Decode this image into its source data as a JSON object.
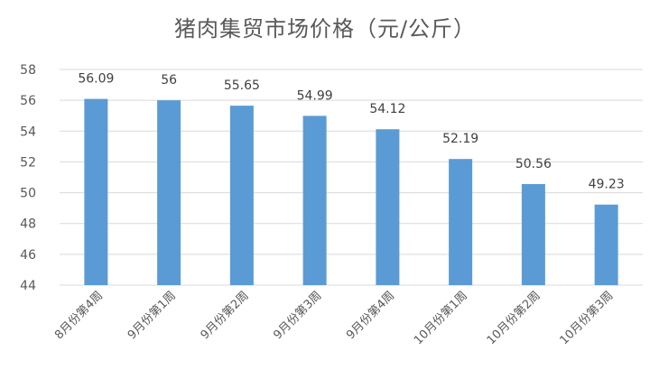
{
  "chart_data": {
    "type": "bar",
    "title": "猪肉集贸市场价格（元/公斤）",
    "categories": [
      "8月份第4周",
      "9月份第1周",
      "9月份第2周",
      "9月份第3周",
      "9月份第4周",
      "10月份第1周",
      "10月份第2周",
      "10月份第3周"
    ],
    "values": [
      56.09,
      56,
      55.65,
      54.99,
      54.12,
      52.19,
      50.56,
      49.23
    ],
    "data_labels": [
      "56.09",
      "56",
      "55.65",
      "54.99",
      "54.12",
      "52.19",
      "50.56",
      "49.23"
    ],
    "y_ticks": [
      44,
      46,
      48,
      50,
      52,
      54,
      56,
      58
    ],
    "ylim": [
      44,
      58
    ],
    "grid": true,
    "legend": "none",
    "bar_color": "#5b9bd5",
    "grid_color": "#d9d9d9"
  }
}
